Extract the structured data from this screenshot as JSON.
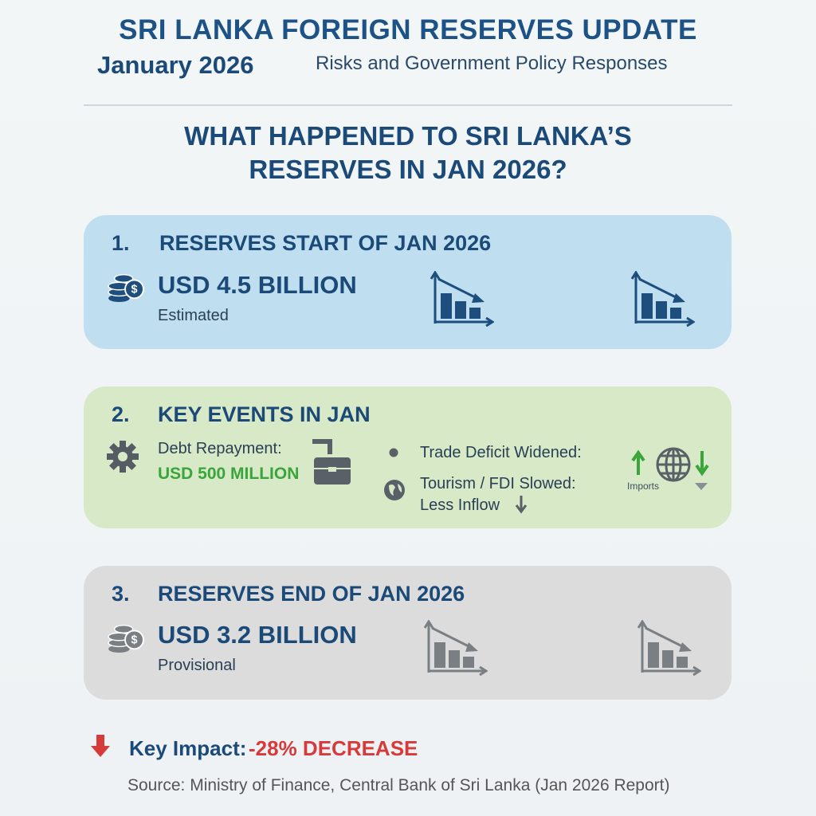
{
  "header": {
    "title": "SRI LANKA FOREIGN RESERVES UPDATE",
    "date": "January 2026",
    "subtitle": "Risks and Government Policy Responses"
  },
  "question": {
    "lines": [
      "WHAT HAPPENED TO SRI LANKA’S",
      "RESERVES IN JAN 2026?"
    ]
  },
  "sections": [
    {
      "number": "1.",
      "heading": "RESERVES START OF JAN 2026",
      "value": "USD 4.5 BILLION",
      "note": "Estimated"
    },
    {
      "number": "2.",
      "heading": "KEY EVENTS IN JAN",
      "debt_label": "Debt Repayment:",
      "debt_amount": "USD 500 MILLION",
      "trade": "Trade Deficit Widened:",
      "tourism": "Tourism / FDI Slowed:",
      "inflow": "Less Inflow",
      "imports": "Imports"
    },
    {
      "number": "3.",
      "heading": "RESERVES END OF JAN 2026",
      "value": "USD 3.2 BILLION",
      "note": "Provisional"
    }
  ],
  "impact": {
    "label": "Key Impact:",
    "value": "-28% DECREASE"
  },
  "source": "Source: Ministry of Finance, Central Bank of Sri Lanka (Jan 2026 Report)"
}
